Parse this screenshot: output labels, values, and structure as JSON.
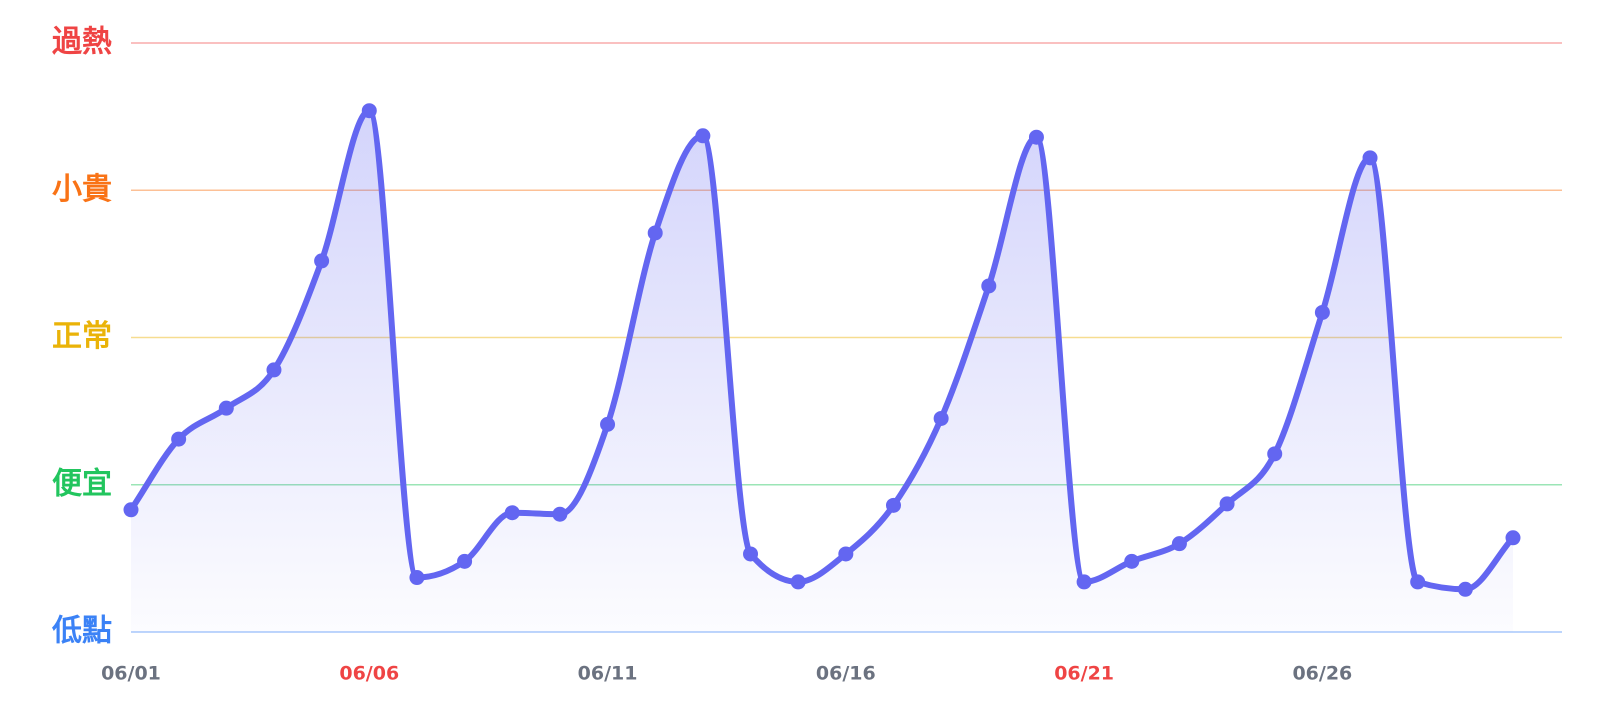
{
  "chart_data": {
    "type": "line",
    "categories": [
      "06/01",
      null,
      null,
      null,
      null,
      "06/06",
      null,
      null,
      null,
      null,
      "06/11",
      null,
      null,
      null,
      null,
      "06/16",
      null,
      null,
      null,
      null,
      "06/21",
      null,
      null,
      null,
      null,
      "06/26",
      null,
      null,
      null,
      null
    ],
    "category_colors": [
      "#6b7280",
      null,
      null,
      null,
      null,
      "#ef4444",
      null,
      null,
      null,
      null,
      "#6b7280",
      null,
      null,
      null,
      null,
      "#6b7280",
      null,
      null,
      null,
      null,
      "#ef4444",
      null,
      null,
      null,
      null,
      "#6b7280",
      null,
      null,
      null,
      null
    ],
    "series": [
      {
        "color": "#6366f1",
        "values": [
          0.83,
          1.31,
          1.52,
          1.78,
          2.52,
          3.54,
          0.37,
          0.48,
          0.81,
          0.8,
          1.41,
          2.71,
          3.37,
          0.53,
          0.34,
          0.53,
          0.86,
          1.45,
          2.35,
          3.36,
          0.34,
          0.48,
          0.6,
          0.87,
          1.21,
          2.17,
          3.22,
          0.34,
          0.29,
          0.64
        ]
      }
    ],
    "ylim": [
      0,
      4
    ],
    "yticks": [
      {
        "value": 0,
        "label": "低點",
        "color": "#3b82f6"
      },
      {
        "value": 1,
        "label": "便宜",
        "color": "#22c55e"
      },
      {
        "value": 2,
        "label": "正常",
        "color": "#eab308"
      },
      {
        "value": 3,
        "label": "小貴",
        "color": "#f97316"
      },
      {
        "value": 4,
        "label": "過熱",
        "color": "#ef4444"
      }
    ],
    "grid": true
  }
}
